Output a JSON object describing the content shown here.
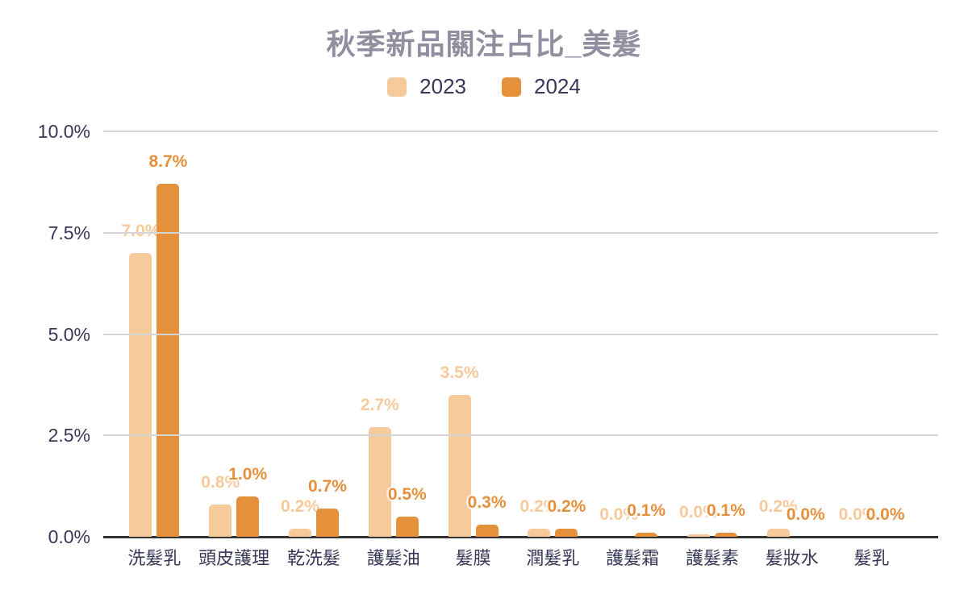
{
  "chart_data": {
    "type": "bar",
    "title": "秋季新品關注占比_美髮",
    "categories": [
      "洗髮乳",
      "頭皮護理",
      "乾洗髮",
      "護髮油",
      "髮膜",
      "潤髮乳",
      "護髮霜",
      "護髮素",
      "髮妝水",
      "髮乳"
    ],
    "series": [
      {
        "name": "2023",
        "color": "#F7CA9C",
        "values": [
          7.0,
          0.8,
          0.2,
          2.7,
          3.5,
          0.2,
          0,
          0.05,
          0.2,
          0
        ],
        "labels": [
          "7.0%",
          "0.8%",
          "0.2%",
          "2.7%",
          "3.5%",
          "0.2%",
          "0.0%",
          "0.0%",
          "0.2%",
          "0.0%"
        ]
      },
      {
        "name": "2024",
        "color": "#E5913C",
        "values": [
          8.7,
          1.0,
          0.7,
          0.5,
          0.3,
          0.2,
          0.1,
          0.1,
          0,
          0
        ],
        "labels": [
          "8.7%",
          "1.0%",
          "0.7%",
          "0.5%",
          "0.3%",
          "0.2%",
          "0.1%",
          "0.1%",
          "0.0%",
          "0.0%"
        ]
      }
    ],
    "y_axis": {
      "min": 0,
      "max": 10,
      "ticks_top_to_bottom": [
        "10.0%",
        "7.5%",
        "5.0%",
        "2.5%",
        "0.0%"
      ]
    },
    "legend_position": "top",
    "grid": true,
    "colors": {
      "title_text": "#8F8F9F",
      "axis_text": "#373757",
      "gridline": "#D5D5D5",
      "axis_line": "#333333",
      "background": "#FFFFFF"
    }
  }
}
